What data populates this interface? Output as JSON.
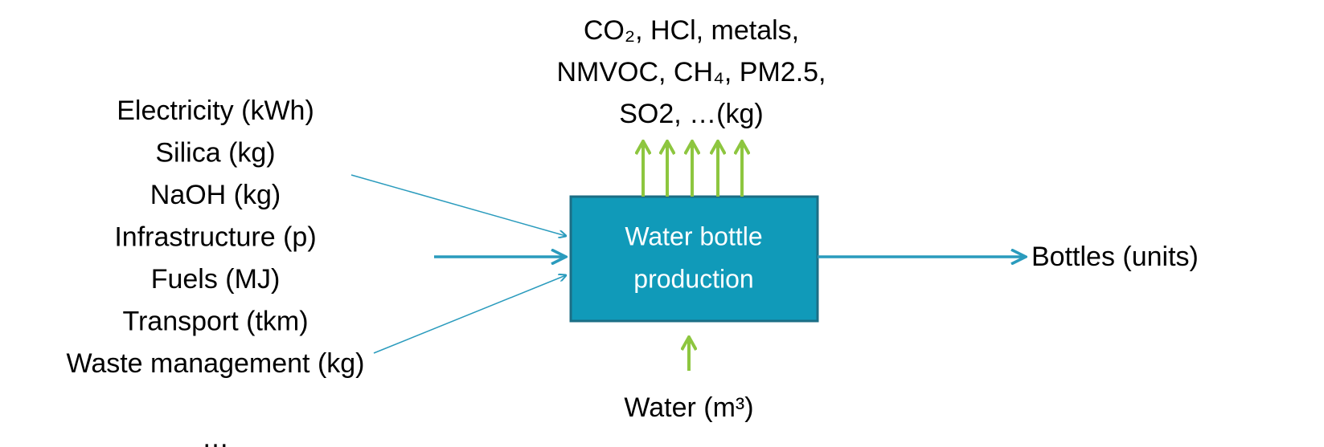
{
  "process": {
    "label_lines": [
      "Water bottle",
      "production"
    ]
  },
  "inputs": [
    "Electricity (kWh)",
    "Silica (kg)",
    "NaOH (kg)",
    "Infrastructure (p)",
    "Fuels (MJ)",
    "Transport (tkm)",
    "Waste management (kg)"
  ],
  "inputs_more": "…",
  "emissions": [
    "CO₂,  HCl, metals,",
    "NMVOC, CH₄, PM2.5,",
    "SO2, …(kg)"
  ],
  "product": "Bottles (units)",
  "resource": "Water (m³)"
}
